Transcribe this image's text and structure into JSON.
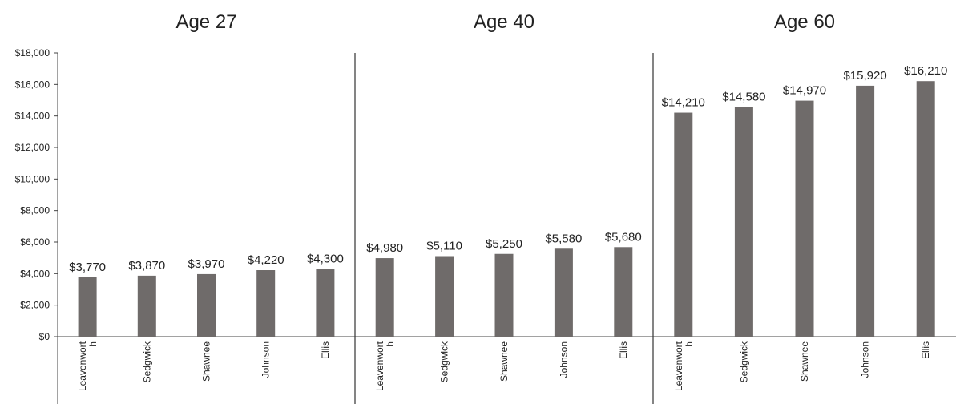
{
  "chart_data": {
    "type": "bar",
    "y_ticks": [
      "$0",
      "$2,000",
      "$4,000",
      "$6,000",
      "$8,000",
      "$10,000",
      "$12,000",
      "$14,000",
      "$16,000",
      "$18,000"
    ],
    "ylim": [
      0,
      18000
    ],
    "grid": false,
    "legend": "none",
    "bar_color": "#6f6b6a",
    "panels": [
      {
        "title": "Age 27",
        "categories": [
          "Leavenwort h",
          "Sedgwick",
          "Shawnee",
          "Johnson",
          "Ellis"
        ],
        "values": [
          3770,
          3870,
          3970,
          4220,
          4300
        ],
        "labels": [
          "$3,770",
          "$3,870",
          "$3,970",
          "$4,220",
          "$4,300"
        ]
      },
      {
        "title": "Age 40",
        "categories": [
          "Leavenwort h",
          "Sedgwick",
          "Shawnee",
          "Johnson",
          "Ellis"
        ],
        "values": [
          4980,
          5110,
          5250,
          5580,
          5680
        ],
        "labels": [
          "$4,980",
          "$5,110",
          "$5,250",
          "$5,580",
          "$5,680"
        ]
      },
      {
        "title": "Age 60",
        "categories": [
          "Leavenwort h",
          "Sedgwick",
          "Shawnee",
          "Johnson",
          "Ellis"
        ],
        "values": [
          14210,
          14580,
          14970,
          15920,
          16210
        ],
        "labels": [
          "$14,210",
          "$14,580",
          "$14,970",
          "$15,920",
          "$16,210"
        ]
      }
    ]
  }
}
